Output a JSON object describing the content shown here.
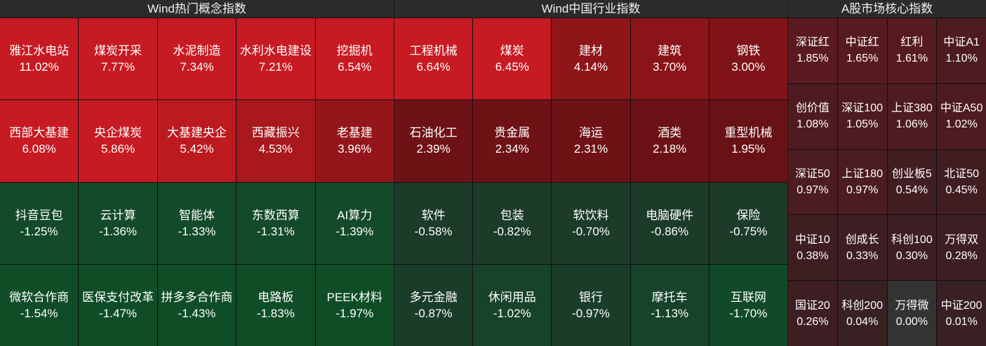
{
  "panels": [
    {
      "title": "Wind热门概念指数",
      "cells": [
        {
          "name": "雅江水电站",
          "pct": "11.02%",
          "color": "#c81a22"
        },
        {
          "name": "煤炭开采",
          "pct": "7.77%",
          "color": "#c81a22"
        },
        {
          "name": "水泥制造",
          "pct": "7.34%",
          "color": "#c81a22"
        },
        {
          "name": "水利水电建设",
          "pct": "7.21%",
          "color": "#c81a22"
        },
        {
          "name": "挖掘机",
          "pct": "6.54%",
          "color": "#c81a22"
        },
        {
          "name": "西部大基建",
          "pct": "6.08%",
          "color": "#c81a22"
        },
        {
          "name": "央企煤炭",
          "pct": "5.86%",
          "color": "#c81a22"
        },
        {
          "name": "大基建央企",
          "pct": "5.42%",
          "color": "#bd1a20"
        },
        {
          "name": "西藏振兴",
          "pct": "4.53%",
          "color": "#a8181d"
        },
        {
          "name": "老基建",
          "pct": "3.96%",
          "color": "#95161a"
        },
        {
          "name": "抖音豆包",
          "pct": "-1.25%",
          "color": "#134a2a"
        },
        {
          "name": "云计算",
          "pct": "-1.36%",
          "color": "#134a2a"
        },
        {
          "name": "智能体",
          "pct": "-1.33%",
          "color": "#134a2a"
        },
        {
          "name": "东数西算",
          "pct": "-1.31%",
          "color": "#134a2a"
        },
        {
          "name": "AI算力",
          "pct": "-1.39%",
          "color": "#134a2a"
        },
        {
          "name": "微软合作商",
          "pct": "-1.54%",
          "color": "#0f4d27"
        },
        {
          "name": "医保支付改革",
          "pct": "-1.47%",
          "color": "#0f4d27"
        },
        {
          "name": "拼多多合作商",
          "pct": "-1.43%",
          "color": "#0f4d27"
        },
        {
          "name": "电路板",
          "pct": "-1.83%",
          "color": "#0f4d27"
        },
        {
          "name": "PEEK材料",
          "pct": "-1.97%",
          "color": "#0f4d27"
        }
      ]
    },
    {
      "title": "Wind中国行业指数",
      "cells": [
        {
          "name": "工程机械",
          "pct": "6.64%",
          "color": "#c81a22"
        },
        {
          "name": "煤炭",
          "pct": "6.45%",
          "color": "#c81a22"
        },
        {
          "name": "建材",
          "pct": "4.14%",
          "color": "#8f1519"
        },
        {
          "name": "建筑",
          "pct": "3.70%",
          "color": "#8a1418"
        },
        {
          "name": "钢铁",
          "pct": "3.00%",
          "color": "#801317"
        },
        {
          "name": "石油化工",
          "pct": "2.39%",
          "color": "#6e1216"
        },
        {
          "name": "贵金属",
          "pct": "2.34%",
          "color": "#6e1216"
        },
        {
          "name": "海运",
          "pct": "2.31%",
          "color": "#6e1216"
        },
        {
          "name": "酒类",
          "pct": "2.18%",
          "color": "#6c1216"
        },
        {
          "name": "重型机械",
          "pct": "1.95%",
          "color": "#681216"
        },
        {
          "name": "软件",
          "pct": "-0.58%",
          "color": "#1c3b29"
        },
        {
          "name": "包装",
          "pct": "-0.82%",
          "color": "#1c3b29"
        },
        {
          "name": "软饮料",
          "pct": "-0.70%",
          "color": "#1c3b29"
        },
        {
          "name": "电脑硬件",
          "pct": "-0.86%",
          "color": "#1c3b29"
        },
        {
          "name": "保险",
          "pct": "-0.75%",
          "color": "#1c3b29"
        },
        {
          "name": "多元金融",
          "pct": "-0.87%",
          "color": "#1a3d29"
        },
        {
          "name": "休闲用品",
          "pct": "-1.02%",
          "color": "#16432a"
        },
        {
          "name": "银行",
          "pct": "-0.97%",
          "color": "#1a3d29"
        },
        {
          "name": "摩托车",
          "pct": "-1.13%",
          "color": "#16432a"
        },
        {
          "name": "互联网",
          "pct": "-1.70%",
          "color": "#104a28"
        }
      ]
    },
    {
      "title": "A股市场核心指数",
      "cells": [
        {
          "name": "深证红",
          "pct": "1.85%",
          "color": "#5a1a1f"
        },
        {
          "name": "中证红",
          "pct": "1.65%",
          "color": "#571a1e"
        },
        {
          "name": "红利",
          "pct": "1.61%",
          "color": "#571a1e"
        },
        {
          "name": "中证A1",
          "pct": "1.10%",
          "color": "#4d1b20"
        },
        {
          "name": "创价值",
          "pct": "1.08%",
          "color": "#4d1b20"
        },
        {
          "name": "深证100",
          "pct": "1.05%",
          "color": "#4d1b20"
        },
        {
          "name": "上证380",
          "pct": "1.06%",
          "color": "#4d1b20"
        },
        {
          "name": "中证A50",
          "pct": "1.02%",
          "color": "#4d1b20"
        },
        {
          "name": "深证50",
          "pct": "0.97%",
          "color": "#4b1c20"
        },
        {
          "name": "上证180",
          "pct": "0.97%",
          "color": "#4b1c20"
        },
        {
          "name": "创业板5",
          "pct": "0.54%",
          "color": "#421d21"
        },
        {
          "name": "北证50",
          "pct": "0.45%",
          "color": "#401d21"
        },
        {
          "name": "中证10",
          "pct": "0.38%",
          "color": "#3f1e22"
        },
        {
          "name": "创成长",
          "pct": "0.33%",
          "color": "#3e1e22"
        },
        {
          "name": "科创100",
          "pct": "0.30%",
          "color": "#3e1e22"
        },
        {
          "name": "万得双",
          "pct": "0.28%",
          "color": "#3d1e22"
        },
        {
          "name": "国证20",
          "pct": "0.26%",
          "color": "#3d1e22"
        },
        {
          "name": "科创200",
          "pct": "0.04%",
          "color": "#382023"
        },
        {
          "name": "万得微",
          "pct": "0.00%",
          "color": "#333333"
        },
        {
          "name": "中证200",
          "pct": "0.01%",
          "color": "#382023"
        }
      ]
    }
  ]
}
